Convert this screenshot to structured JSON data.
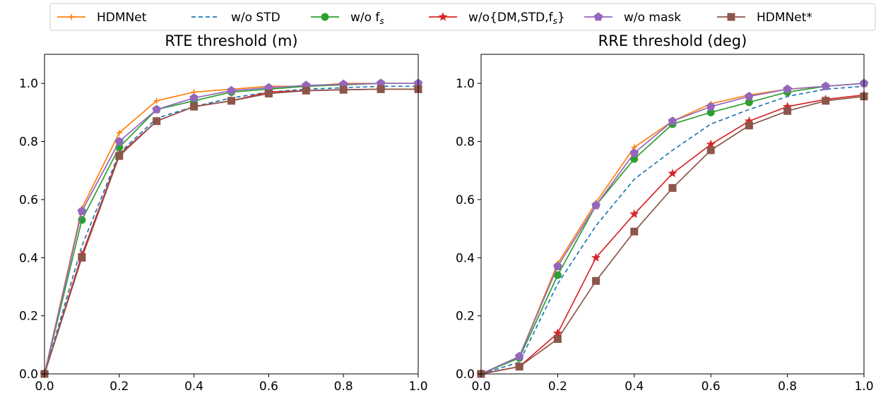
{
  "legend": {
    "items": [
      {
        "name": "HDMNet",
        "sub": ""
      },
      {
        "name": "w/o STD",
        "sub": ""
      },
      {
        "name": "w/o f",
        "sub": "s"
      },
      {
        "name": "w/o{DM,STD,f",
        "sub": "s",
        "suffix": "}"
      },
      {
        "name": "w/o mask",
        "sub": ""
      },
      {
        "name": "HDMNet*",
        "sub": ""
      }
    ]
  },
  "styles": [
    {
      "color": "#ff7f0e",
      "dash": "",
      "marker": "plus"
    },
    {
      "color": "#1f77b4",
      "dash": "6,4",
      "marker": "none"
    },
    {
      "color": "#2ca02c",
      "dash": "",
      "marker": "circle"
    },
    {
      "color": "#d62728",
      "dash": "",
      "marker": "star"
    },
    {
      "color": "#9467bd",
      "dash": "",
      "marker": "pentagon"
    },
    {
      "color": "#8c564b",
      "dash": "",
      "marker": "square"
    }
  ],
  "chart_data": [
    {
      "type": "line",
      "title": "RTE threshold (m)",
      "xlabel": "",
      "ylabel": "",
      "xlim": [
        0,
        1
      ],
      "ylim": [
        0,
        1.1
      ],
      "xticks": [
        "0.0",
        "0.2",
        "0.4",
        "0.6",
        "0.8",
        "1.0"
      ],
      "yticks": [
        "0.0",
        "0.2",
        "0.4",
        "0.6",
        "0.8",
        "1.0"
      ],
      "x": [
        0,
        0.1,
        0.2,
        0.3,
        0.4,
        0.5,
        0.6,
        0.7,
        0.8,
        0.9,
        1.0
      ],
      "series": [
        {
          "name": "HDMNet",
          "values": [
            0,
            0.57,
            0.83,
            0.94,
            0.97,
            0.98,
            0.99,
            0.99,
            1.0,
            1.0,
            1.0
          ]
        },
        {
          "name": "w/o STD",
          "values": [
            0,
            0.44,
            0.76,
            0.88,
            0.92,
            0.95,
            0.97,
            0.98,
            0.985,
            0.99,
            0.99
          ]
        },
        {
          "name": "w/o f_s",
          "values": [
            0,
            0.53,
            0.78,
            0.91,
            0.94,
            0.97,
            0.98,
            0.99,
            0.995,
            1.0,
            1.0
          ]
        },
        {
          "name": "w/o{DM,STD,f_s}",
          "values": [
            0,
            0.41,
            0.755,
            0.87,
            0.92,
            0.94,
            0.97,
            0.975,
            0.978,
            0.98,
            0.98
          ]
        },
        {
          "name": "w/o mask",
          "values": [
            0,
            0.56,
            0.8,
            0.91,
            0.95,
            0.975,
            0.985,
            0.993,
            0.997,
            1.0,
            1.0
          ]
        },
        {
          "name": "HDMNet*",
          "values": [
            0,
            0.4,
            0.75,
            0.87,
            0.92,
            0.94,
            0.965,
            0.975,
            0.978,
            0.98,
            0.98
          ]
        }
      ]
    },
    {
      "type": "line",
      "title": "RRE threshold (deg)",
      "xlabel": "",
      "ylabel": "",
      "xlim": [
        0,
        1
      ],
      "ylim": [
        0,
        1.1
      ],
      "xticks": [
        "0.0",
        "0.2",
        "0.4",
        "0.6",
        "0.8",
        "1.0"
      ],
      "yticks": [
        "0.0",
        "0.2",
        "0.4",
        "0.6",
        "0.8",
        "1.0"
      ],
      "x": [
        0,
        0.1,
        0.2,
        0.3,
        0.4,
        0.5,
        0.6,
        0.7,
        0.8,
        0.9,
        1.0
      ],
      "series": [
        {
          "name": "HDMNet",
          "values": [
            0,
            0.06,
            0.38,
            0.59,
            0.78,
            0.87,
            0.93,
            0.96,
            0.98,
            0.99,
            1.0
          ]
        },
        {
          "name": "w/o STD",
          "values": [
            0,
            0.04,
            0.31,
            0.51,
            0.67,
            0.77,
            0.86,
            0.91,
            0.955,
            0.98,
            0.99
          ]
        },
        {
          "name": "w/o f_s",
          "values": [
            0,
            0.055,
            0.34,
            0.58,
            0.74,
            0.86,
            0.9,
            0.935,
            0.97,
            0.99,
            1.0
          ]
        },
        {
          "name": "w/o{DM,STD,f_s}",
          "values": [
            0,
            0.025,
            0.14,
            0.4,
            0.55,
            0.69,
            0.79,
            0.87,
            0.92,
            0.945,
            0.96
          ]
        },
        {
          "name": "w/o mask",
          "values": [
            0,
            0.06,
            0.37,
            0.58,
            0.76,
            0.87,
            0.92,
            0.955,
            0.98,
            0.99,
            1.0
          ]
        },
        {
          "name": "HDMNet*",
          "values": [
            0,
            0.025,
            0.12,
            0.32,
            0.49,
            0.64,
            0.77,
            0.855,
            0.905,
            0.94,
            0.955
          ]
        }
      ]
    }
  ]
}
